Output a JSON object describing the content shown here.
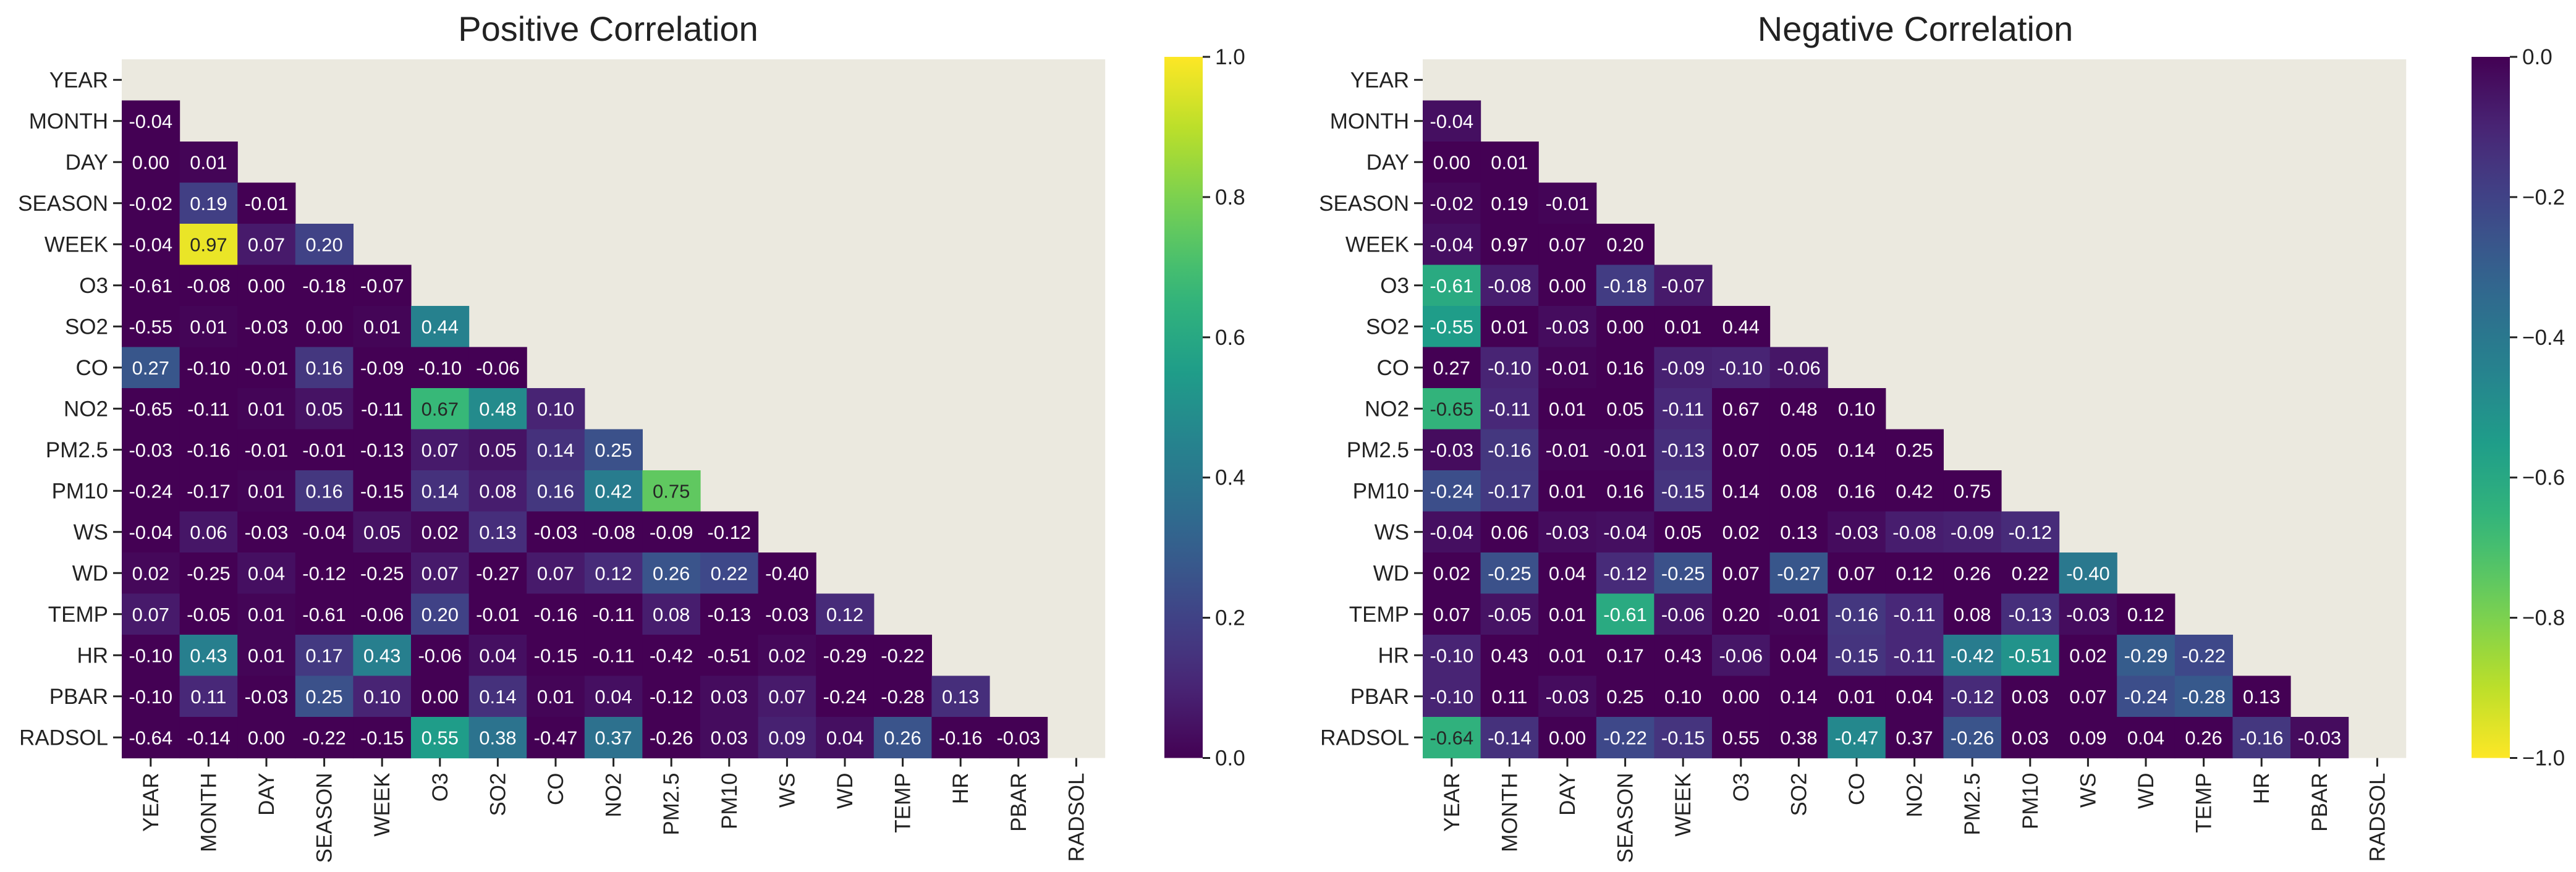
{
  "chart_data": [
    {
      "type": "heatmap",
      "title": "Positive Correlation",
      "variables": [
        "YEAR",
        "MONTH",
        "DAY",
        "SEASON",
        "WEEK",
        "O3",
        "SO2",
        "CO",
        "NO2",
        "PM2.5",
        "PM10",
        "WS",
        "WD",
        "TEMP",
        "HR",
        "PBAR",
        "RADSOL"
      ],
      "mask": "upper-triangle-including-diagonal",
      "colormap": "viridis",
      "color_range": [
        0.0,
        1.0
      ],
      "colorbar_ticks": [
        "0.0",
        "0.2",
        "0.4",
        "0.6",
        "0.8",
        "1.0"
      ],
      "colorbar_direction": "normal",
      "values": [
        [],
        [
          -0.04
        ],
        [
          -0.0,
          0.01
        ],
        [
          -0.02,
          0.19,
          -0.01
        ],
        [
          -0.04,
          0.97,
          0.07,
          0.2
        ],
        [
          -0.61,
          -0.08,
          0.0,
          -0.18,
          -0.07
        ],
        [
          -0.55,
          0.01,
          -0.03,
          0.0,
          0.01,
          0.44
        ],
        [
          0.27,
          -0.1,
          -0.01,
          0.16,
          -0.09,
          -0.1,
          -0.06
        ],
        [
          -0.65,
          -0.11,
          0.01,
          0.05,
          -0.11,
          0.67,
          0.48,
          0.1
        ],
        [
          -0.03,
          -0.16,
          -0.01,
          -0.01,
          -0.13,
          0.07,
          0.05,
          0.14,
          0.25
        ],
        [
          -0.24,
          -0.17,
          0.01,
          0.16,
          -0.15,
          0.14,
          0.08,
          0.16,
          0.42,
          0.75
        ],
        [
          -0.04,
          0.06,
          -0.03,
          -0.04,
          0.05,
          0.02,
          0.13,
          -0.03,
          -0.08,
          -0.09,
          -0.12
        ],
        [
          0.02,
          -0.25,
          0.04,
          -0.12,
          -0.25,
          0.07,
          -0.27,
          0.07,
          0.12,
          0.26,
          0.22,
          -0.4
        ],
        [
          0.07,
          -0.05,
          0.01,
          -0.61,
          -0.06,
          0.2,
          -0.01,
          -0.16,
          -0.11,
          0.08,
          -0.13,
          -0.03,
          0.12
        ],
        [
          -0.1,
          0.43,
          0.01,
          0.17,
          0.43,
          -0.06,
          0.04,
          -0.15,
          -0.11,
          -0.42,
          -0.51,
          0.02,
          -0.29,
          -0.22
        ],
        [
          -0.1,
          0.11,
          -0.03,
          0.25,
          0.1,
          0.0,
          0.14,
          0.01,
          0.04,
          -0.12,
          0.03,
          0.07,
          -0.24,
          -0.28,
          0.13
        ],
        [
          -0.64,
          -0.14,
          -0.0,
          -0.22,
          -0.15,
          0.55,
          0.38,
          -0.47,
          0.37,
          -0.26,
          0.03,
          0.09,
          0.04,
          0.26,
          -0.16,
          -0.03
        ]
      ]
    },
    {
      "type": "heatmap",
      "title": "Negative Correlation",
      "variables": [
        "YEAR",
        "MONTH",
        "DAY",
        "SEASON",
        "WEEK",
        "O3",
        "SO2",
        "CO",
        "NO2",
        "PM2.5",
        "PM10",
        "WS",
        "WD",
        "TEMP",
        "HR",
        "PBAR",
        "RADSOL"
      ],
      "mask": "upper-triangle-including-diagonal",
      "colormap": "viridis_r",
      "color_range": [
        -1.0,
        0.0
      ],
      "colorbar_ticks": [
        "−1.0",
        "−0.8",
        "−0.6",
        "−0.4",
        "−0.2",
        "0.0"
      ],
      "colorbar_direction": "reversed",
      "values": [
        [],
        [
          -0.04
        ],
        [
          -0.0,
          0.01
        ],
        [
          -0.02,
          0.19,
          -0.01
        ],
        [
          -0.04,
          0.97,
          0.07,
          0.2
        ],
        [
          -0.61,
          -0.08,
          0.0,
          -0.18,
          -0.07
        ],
        [
          -0.55,
          0.01,
          -0.03,
          0.0,
          0.01,
          0.44
        ],
        [
          0.27,
          -0.1,
          -0.01,
          0.16,
          -0.09,
          -0.1,
          -0.06
        ],
        [
          -0.65,
          -0.11,
          0.01,
          0.05,
          -0.11,
          0.67,
          0.48,
          0.1
        ],
        [
          -0.03,
          -0.16,
          -0.01,
          -0.01,
          -0.13,
          0.07,
          0.05,
          0.14,
          0.25
        ],
        [
          -0.24,
          -0.17,
          0.01,
          0.16,
          -0.15,
          0.14,
          0.08,
          0.16,
          0.42,
          0.75
        ],
        [
          -0.04,
          0.06,
          -0.03,
          -0.04,
          0.05,
          0.02,
          0.13,
          -0.03,
          -0.08,
          -0.09,
          -0.12
        ],
        [
          0.02,
          -0.25,
          0.04,
          -0.12,
          -0.25,
          0.07,
          -0.27,
          0.07,
          0.12,
          0.26,
          0.22,
          -0.4
        ],
        [
          0.07,
          -0.05,
          0.01,
          -0.61,
          -0.06,
          0.2,
          -0.01,
          -0.16,
          -0.11,
          0.08,
          -0.13,
          -0.03,
          0.12
        ],
        [
          -0.1,
          0.43,
          0.01,
          0.17,
          0.43,
          -0.06,
          0.04,
          -0.15,
          -0.11,
          -0.42,
          -0.51,
          0.02,
          -0.29,
          -0.22
        ],
        [
          -0.1,
          0.11,
          -0.03,
          0.25,
          0.1,
          0.0,
          0.14,
          0.01,
          0.04,
          -0.12,
          0.03,
          0.07,
          -0.24,
          -0.28,
          0.13
        ],
        [
          -0.64,
          -0.14,
          -0.0,
          -0.22,
          -0.15,
          0.55,
          0.38,
          -0.47,
          0.37,
          -0.26,
          0.03,
          0.09,
          0.04,
          0.26,
          -0.16,
          -0.03
        ]
      ]
    }
  ],
  "colors": {
    "masked_background": "#ebe9df",
    "axis_text": "#222222",
    "viridis_stops": [
      "#440154",
      "#482878",
      "#3e4989",
      "#31688e",
      "#26828e",
      "#1f9e89",
      "#35b779",
      "#6ece58",
      "#b5de2b",
      "#fde725"
    ]
  }
}
